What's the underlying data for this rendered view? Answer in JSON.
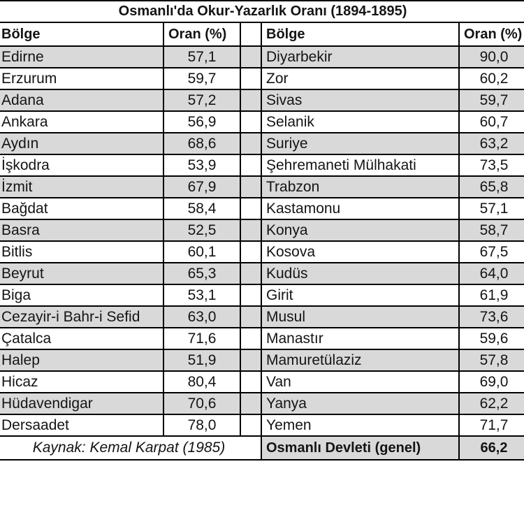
{
  "title": "Osmanlı'da Okur-Yazarlık Oranı (1894-1895)",
  "columns": {
    "region": "Bölge",
    "rate": "Oran (%)"
  },
  "table": {
    "left_rows": [
      {
        "region": "Edirne",
        "rate": "57,1"
      },
      {
        "region": "Erzurum",
        "rate": "59,7"
      },
      {
        "region": "Adana",
        "rate": "57,2"
      },
      {
        "region": "Ankara",
        "rate": "56,9"
      },
      {
        "region": "Aydın",
        "rate": "68,6"
      },
      {
        "region": "İşkodra",
        "rate": "53,9"
      },
      {
        "region": "İzmit",
        "rate": "67,9"
      },
      {
        "region": "Bağdat",
        "rate": "58,4"
      },
      {
        "region": "Basra",
        "rate": "52,5"
      },
      {
        "region": "Bitlis",
        "rate": "60,1"
      },
      {
        "region": "Beyrut",
        "rate": "65,3"
      },
      {
        "region": "Biga",
        "rate": "53,1"
      },
      {
        "region": "Cezayir-i Bahr-i Sefid",
        "rate": "63,0"
      },
      {
        "region": "Çatalca",
        "rate": "71,6"
      },
      {
        "region": "Halep",
        "rate": "51,9"
      },
      {
        "region": "Hicaz",
        "rate": "80,4"
      },
      {
        "region": "Hüdavendigar",
        "rate": "70,6"
      },
      {
        "region": "Dersaadet",
        "rate": "78,0"
      }
    ],
    "right_rows": [
      {
        "region": "Diyarbekir",
        "rate": "90,0"
      },
      {
        "region": "Zor",
        "rate": "60,2"
      },
      {
        "region": "Sivas",
        "rate": "59,7"
      },
      {
        "region": "Selanik",
        "rate": "60,7"
      },
      {
        "region": "Suriye",
        "rate": "63,2"
      },
      {
        "region": "Şehremaneti Mülhakati",
        "rate": "73,5"
      },
      {
        "region": "Trabzon",
        "rate": "65,8"
      },
      {
        "region": "Kastamonu",
        "rate": "57,1"
      },
      {
        "region": "Konya",
        "rate": "58,7"
      },
      {
        "region": "Kosova",
        "rate": "67,5"
      },
      {
        "region": "Kudüs",
        "rate": "64,0"
      },
      {
        "region": "Girit",
        "rate": "61,9"
      },
      {
        "region": "Musul",
        "rate": "73,6"
      },
      {
        "region": "Manastır",
        "rate": "59,6"
      },
      {
        "region": "Mamuretülaziz",
        "rate": "57,8"
      },
      {
        "region": "Van",
        "rate": "69,0"
      },
      {
        "region": "Yanya",
        "rate": "62,2"
      },
      {
        "region": "Yemen",
        "rate": "71,7"
      }
    ]
  },
  "footer": {
    "source": "Kaynak: Kemal Karpat (1985)",
    "total_label": "Osmanlı Devleti (genel)",
    "total_value": "66,2"
  },
  "colors": {
    "row_shade": "#d9d9d9",
    "border": "#000000",
    "text": "#141414"
  }
}
